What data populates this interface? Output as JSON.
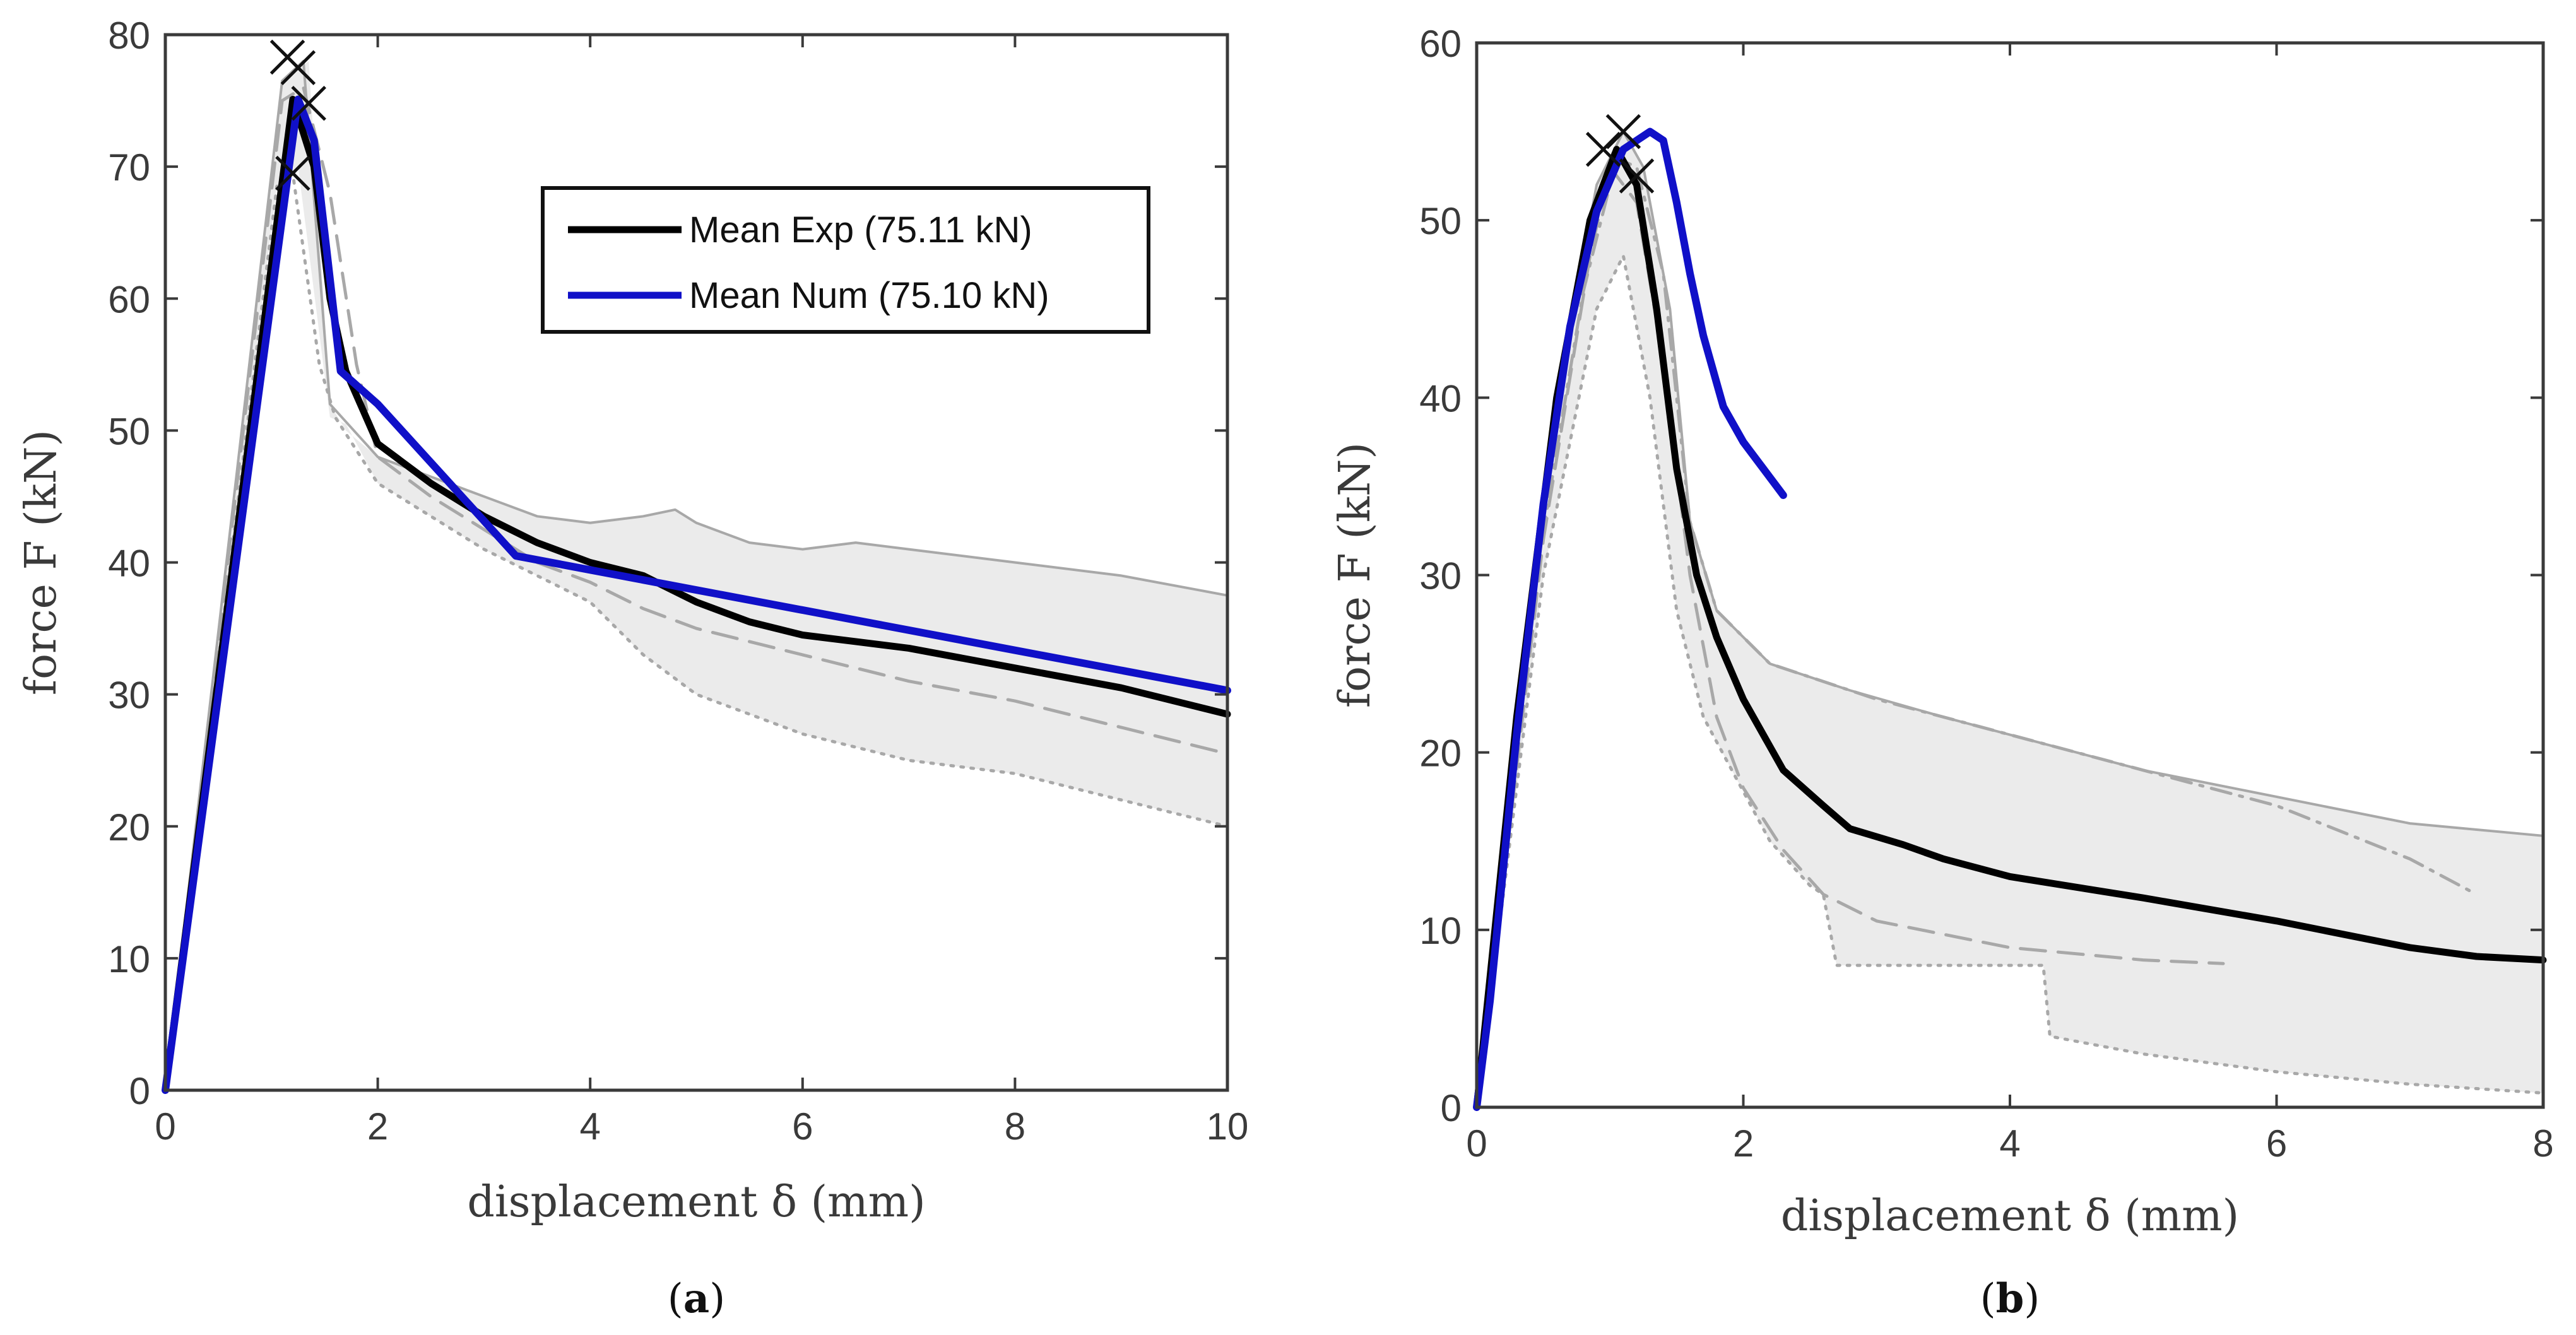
{
  "colors": {
    "mean_exp": "#000000",
    "mean_num": "#1010c8",
    "band_fill": "#ebebeb",
    "specimen": "#a8a8a8",
    "axis": "#3a3a3a"
  },
  "chart_data": [
    {
      "type": "line",
      "panel_label": "(a)",
      "panel_label_parts": {
        "open": "(",
        "letter": "a",
        "close": ")"
      },
      "xlabel": "displacement δ (mm)",
      "ylabel": "force F (kN)",
      "xlim": [
        0,
        10
      ],
      "ylim": [
        0,
        80
      ],
      "xticks": [
        0,
        2,
        4,
        6,
        8,
        10
      ],
      "yticks": [
        0,
        10,
        20,
        30,
        40,
        50,
        60,
        70,
        80
      ],
      "legend": {
        "placement": "top-right",
        "entries": [
          "Mean Exp (75.11 kN)",
          "Mean Num (75.10 kN)"
        ]
      },
      "band": {
        "upper": [
          [
            0,
            0
          ],
          [
            1.1,
            76.5
          ],
          [
            1.35,
            78
          ],
          [
            1.55,
            52
          ],
          [
            1.7,
            50
          ],
          [
            2,
            48
          ],
          [
            2.5,
            46.5
          ],
          [
            3,
            45
          ],
          [
            3.5,
            43.5
          ],
          [
            4,
            43
          ],
          [
            4.5,
            43.5
          ],
          [
            4.8,
            44
          ],
          [
            5,
            43
          ],
          [
            5.5,
            41.5
          ],
          [
            6,
            41
          ],
          [
            6.5,
            41.5
          ],
          [
            7,
            41
          ],
          [
            8,
            40
          ],
          [
            9,
            39
          ],
          [
            10,
            37.5
          ]
        ],
        "lower": [
          [
            0,
            0
          ],
          [
            1.05,
            68.5
          ],
          [
            1.25,
            70
          ],
          [
            1.55,
            51
          ],
          [
            1.7,
            50.5
          ],
          [
            2,
            46
          ],
          [
            2.5,
            43.5
          ],
          [
            3,
            41
          ],
          [
            3.5,
            39
          ],
          [
            4,
            37
          ],
          [
            4.5,
            33
          ],
          [
            5,
            30
          ],
          [
            5.5,
            28.5
          ],
          [
            6,
            27
          ],
          [
            7,
            25
          ],
          [
            8,
            24
          ],
          [
            9,
            22
          ],
          [
            10,
            20
          ]
        ]
      },
      "series": [
        {
          "name": "Mean Exp (75.11 kN)",
          "role": "mean_exp",
          "points": [
            [
              0,
              0
            ],
            [
              1.2,
              75.1
            ],
            [
              1.4,
              70
            ],
            [
              1.55,
              60
            ],
            [
              1.7,
              54.5
            ],
            [
              2,
              49
            ],
            [
              2.5,
              46
            ],
            [
              3,
              43.5
            ],
            [
              3.5,
              41.5
            ],
            [
              4,
              40
            ],
            [
              4.5,
              39
            ],
            [
              5,
              37
            ],
            [
              5.5,
              35.5
            ],
            [
              6,
              34.5
            ],
            [
              6.5,
              34
            ],
            [
              7,
              33.5
            ],
            [
              8,
              32
            ],
            [
              9,
              30.5
            ],
            [
              10,
              28.5
            ]
          ]
        },
        {
          "name": "Mean Num (75.10 kN)",
          "role": "mean_num",
          "points": [
            [
              0,
              0
            ],
            [
              1.25,
              75.1
            ],
            [
              1.4,
              72
            ],
            [
              1.65,
              54.5
            ],
            [
              2,
              52
            ],
            [
              3.3,
              40.5
            ],
            [
              10,
              30.3
            ]
          ]
        },
        {
          "name": "Specimen (dashed)",
          "role": "specimen_dashed",
          "points": [
            [
              0,
              0
            ],
            [
              1.1,
              75
            ],
            [
              1.3,
              76
            ],
            [
              1.55,
              68
            ],
            [
              1.8,
              55
            ],
            [
              2,
              48
            ],
            [
              2.5,
              45
            ],
            [
              3,
              42.5
            ],
            [
              3.5,
              40
            ],
            [
              4,
              38.5
            ],
            [
              4.5,
              36.5
            ],
            [
              5,
              35
            ],
            [
              5.5,
              34
            ],
            [
              6,
              33
            ],
            [
              7,
              31
            ],
            [
              8,
              29.5
            ],
            [
              9,
              27.5
            ],
            [
              10,
              25.5
            ]
          ]
        },
        {
          "name": "Specimen (dotted)",
          "role": "specimen_dotted",
          "points": [
            [
              0,
              0
            ],
            [
              1.05,
              68.5
            ],
            [
              1.2,
              69.5
            ],
            [
              1.45,
              55
            ],
            [
              1.6,
              51
            ],
            [
              2,
              46
            ],
            [
              2.5,
              43.5
            ],
            [
              3,
              41
            ],
            [
              3.5,
              39
            ],
            [
              4,
              37
            ],
            [
              4.5,
              33
            ],
            [
              5,
              30
            ],
            [
              5.5,
              28.5
            ],
            [
              6,
              27
            ],
            [
              7,
              25
            ],
            [
              8,
              24
            ],
            [
              9,
              22
            ],
            [
              10,
              20
            ]
          ]
        },
        {
          "name": "Specimen (solid)",
          "role": "specimen_solid",
          "points": [
            [
              0,
              0
            ],
            [
              1.1,
              76.5
            ],
            [
              1.3,
              78
            ],
            [
              1.55,
              52
            ],
            [
              2,
              48
            ],
            [
              2.5,
              46.5
            ],
            [
              3,
              45
            ],
            [
              3.5,
              43.5
            ],
            [
              4,
              43
            ],
            [
              4.5,
              43.5
            ],
            [
              4.8,
              44
            ],
            [
              5,
              43
            ],
            [
              5.5,
              41.5
            ],
            [
              6,
              41
            ],
            [
              6.5,
              41.5
            ],
            [
              7,
              41
            ],
            [
              8,
              40
            ],
            [
              9,
              39
            ],
            [
              10,
              37.5
            ]
          ]
        }
      ],
      "peak_markers": [
        [
          1.15,
          78.3
        ],
        [
          1.25,
          77.5
        ],
        [
          1.35,
          74.8
        ],
        [
          1.2,
          69.5
        ]
      ]
    },
    {
      "type": "line",
      "panel_label": "(b)",
      "panel_label_parts": {
        "open": "(",
        "letter": "b",
        "close": ")"
      },
      "xlabel": "displacement δ (mm)",
      "ylabel": "force F (kN)",
      "xlim": [
        0,
        8
      ],
      "ylim": [
        0,
        60
      ],
      "xticks": [
        0,
        2,
        4,
        6,
        8
      ],
      "yticks": [
        0,
        10,
        20,
        30,
        40,
        50,
        60
      ],
      "band": {
        "upper": [
          [
            0,
            0
          ],
          [
            0.3,
            22
          ],
          [
            0.6,
            40
          ],
          [
            0.9,
            52
          ],
          [
            1.1,
            55
          ],
          [
            1.25,
            53
          ],
          [
            1.45,
            45
          ],
          [
            1.6,
            33
          ],
          [
            1.8,
            28
          ],
          [
            2.2,
            25
          ],
          [
            2.8,
            23.5
          ],
          [
            3.5,
            22
          ],
          [
            4,
            21
          ],
          [
            5,
            19
          ],
          [
            6,
            17.5
          ],
          [
            7,
            16
          ],
          [
            8,
            15.3
          ]
        ],
        "lower": [
          [
            0,
            0
          ],
          [
            0.5,
            30
          ],
          [
            0.9,
            45
          ],
          [
            1.1,
            48
          ],
          [
            1.3,
            40
          ],
          [
            1.5,
            28
          ],
          [
            1.7,
            22
          ],
          [
            2.2,
            15
          ],
          [
            2.5,
            12.5
          ],
          [
            2.6,
            12
          ],
          [
            2.7,
            8
          ],
          [
            4.25,
            8
          ],
          [
            4.3,
            4
          ],
          [
            5,
            3
          ],
          [
            6,
            2
          ],
          [
            7,
            1.3
          ],
          [
            8,
            0.8
          ]
        ]
      },
      "series": [
        {
          "name": "Mean Exp",
          "role": "mean_exp",
          "points": [
            [
              0,
              0
            ],
            [
              0.3,
              22
            ],
            [
              0.6,
              40
            ],
            [
              0.85,
              50
            ],
            [
              1.05,
              54
            ],
            [
              1.2,
              52
            ],
            [
              1.35,
              45
            ],
            [
              1.5,
              36
            ],
            [
              1.65,
              30
            ],
            [
              1.8,
              26.5
            ],
            [
              2,
              23
            ],
            [
              2.3,
              19
            ],
            [
              2.6,
              17
            ],
            [
              2.8,
              15.7
            ],
            [
              3.2,
              14.8
            ],
            [
              3.5,
              14
            ],
            [
              4,
              13
            ],
            [
              5,
              11.8
            ],
            [
              6,
              10.5
            ],
            [
              7,
              9
            ],
            [
              7.5,
              8.5
            ],
            [
              8,
              8.3
            ]
          ]
        },
        {
          "name": "Mean Num",
          "role": "mean_num",
          "points": [
            [
              0,
              0
            ],
            [
              0.1,
              6
            ],
            [
              0.3,
              21
            ],
            [
              0.5,
              34
            ],
            [
              0.7,
              44
            ],
            [
              0.9,
              50.5
            ],
            [
              1.1,
              54
            ],
            [
              1.3,
              55
            ],
            [
              1.4,
              54.5
            ],
            [
              1.5,
              51
            ],
            [
              1.6,
              47
            ],
            [
              1.7,
              43.5
            ],
            [
              1.85,
              39.5
            ],
            [
              2,
              37.5
            ],
            [
              2.2,
              35.5
            ],
            [
              2.3,
              34.5
            ]
          ]
        },
        {
          "name": "Specimen (dash-dot)",
          "role": "specimen_dashdot",
          "points": [
            [
              0,
              0
            ],
            [
              0.4,
              28
            ],
            [
              0.8,
              46
            ],
            [
              1.05,
              53.5
            ],
            [
              1.2,
              53
            ],
            [
              1.4,
              47
            ],
            [
              1.6,
              33
            ],
            [
              1.8,
              28
            ],
            [
              2.2,
              25
            ],
            [
              3,
              23
            ],
            [
              4,
              21
            ],
            [
              5,
              19
            ],
            [
              6,
              17
            ],
            [
              7,
              14
            ],
            [
              7.5,
              12
            ]
          ]
        },
        {
          "name": "Specimen (dashed)",
          "role": "specimen_dashed",
          "points": [
            [
              0,
              0
            ],
            [
              0.5,
              32
            ],
            [
              0.85,
              48
            ],
            [
              1.0,
              53
            ],
            [
              1.2,
              51
            ],
            [
              1.4,
              42
            ],
            [
              1.6,
              30
            ],
            [
              1.8,
              22
            ],
            [
              2,
              18
            ],
            [
              2.3,
              14.5
            ],
            [
              2.6,
              12
            ],
            [
              3,
              10.5
            ],
            [
              4,
              9
            ],
            [
              5,
              8.3
            ],
            [
              5.6,
              8.1
            ]
          ]
        },
        {
          "name": "Specimen (dotted)",
          "role": "specimen_dotted",
          "points": [
            [
              0,
              0
            ],
            [
              0.5,
              30
            ],
            [
              0.9,
              45
            ],
            [
              1.1,
              48
            ],
            [
              1.3,
              40
            ],
            [
              1.5,
              28
            ],
            [
              1.7,
              22
            ],
            [
              2.2,
              15
            ],
            [
              2.5,
              12.5
            ],
            [
              2.6,
              12
            ],
            [
              2.7,
              8
            ],
            [
              4.25,
              8
            ],
            [
              4.3,
              4
            ],
            [
              5,
              3
            ],
            [
              6,
              2
            ],
            [
              7,
              1.3
            ],
            [
              8,
              0.8
            ]
          ]
        },
        {
          "name": "Specimen (solid)",
          "role": "specimen_solid",
          "points": [
            [
              0,
              0
            ],
            [
              0.3,
              22
            ],
            [
              0.6,
              40
            ],
            [
              0.9,
              52
            ],
            [
              1.1,
              55
            ],
            [
              1.25,
              53
            ],
            [
              1.45,
              45
            ],
            [
              1.6,
              33
            ],
            [
              1.8,
              28
            ],
            [
              2.2,
              25
            ],
            [
              2.8,
              23.5
            ],
            [
              3.5,
              22
            ],
            [
              4,
              21
            ],
            [
              5,
              19
            ],
            [
              6,
              17.5
            ],
            [
              7,
              16
            ],
            [
              8,
              15.3
            ]
          ]
        }
      ],
      "peak_markers": [
        [
          0.95,
          54
        ],
        [
          1.1,
          55
        ],
        [
          1.2,
          52.5
        ]
      ]
    }
  ]
}
